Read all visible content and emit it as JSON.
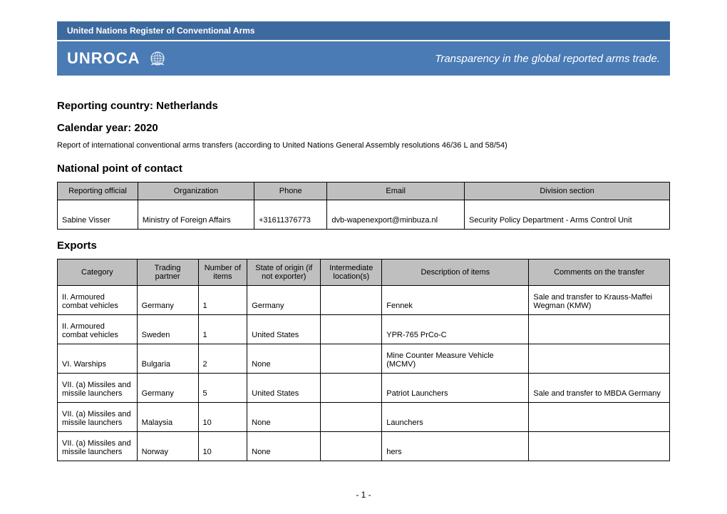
{
  "header": {
    "banner_text": "United Nations Register of Conventional Arms",
    "logo_text": "UNROCA",
    "tagline": "Transparency in the global reported arms trade.",
    "banner_bg": "#3d6a9e",
    "main_bg": "#4a7bb5",
    "text_color": "#ffffff"
  },
  "headings": {
    "country": "Reporting country: Netherlands",
    "year": "Calendar year: 2020",
    "report_note": "Report of international conventional arms transfers (according to United Nations General Assembly resolutions 46/36 L and 58/54)",
    "contact": "National point of contact",
    "exports": "Exports"
  },
  "contact_table": {
    "columns": [
      "Reporting official",
      "Organization",
      "Phone",
      "Email",
      "Division section"
    ],
    "rows": [
      [
        "Sabine Visser",
        "Ministry of Foreign Affairs",
        "+31611376773",
        "dvb-wapenexport@minbuza.nl",
        "Security Policy Department - Arms Control Unit"
      ]
    ]
  },
  "exports_table": {
    "columns": [
      "Category",
      "Trading partner",
      "Number of items",
      "State of origin (if not exporter)",
      "Intermediate location(s)",
      "Description of items",
      "Comments on the transfer"
    ],
    "col_widths": [
      "13%",
      "10%",
      "8%",
      "12%",
      "10%",
      "24%",
      "23%"
    ],
    "rows": [
      [
        "II. Armoured combat vehicles",
        "Germany",
        "1",
        "Germany",
        "",
        "Fennek",
        "Sale and transfer to Krauss-Maffei Wegman (KMW)"
      ],
      [
        "II. Armoured combat vehicles",
        "Sweden",
        "1",
        "United States",
        "",
        "YPR-765 PrCo-C",
        ""
      ],
      [
        "VI. Warships",
        "Bulgaria",
        "2",
        "None",
        "",
        "Mine Counter Measure Vehicle (MCMV)",
        ""
      ],
      [
        "VII. (a) Missiles and missile launchers",
        "Germany",
        "5",
        "United States",
        "",
        "Patriot Launchers",
        "Sale and transfer to MBDA Germany"
      ],
      [
        "VII. (a) Missiles and missile launchers",
        "Malaysia",
        "10",
        "None",
        "",
        "Launchers",
        ""
      ],
      [
        "VII. (a) Missiles and missile launchers",
        "Norway",
        "10",
        "None",
        "",
        "hers",
        ""
      ]
    ]
  },
  "page_number": "- 1 -",
  "table_style": {
    "header_bg": "#bfbfbf",
    "border_color": "#000000",
    "font_size": 11
  }
}
